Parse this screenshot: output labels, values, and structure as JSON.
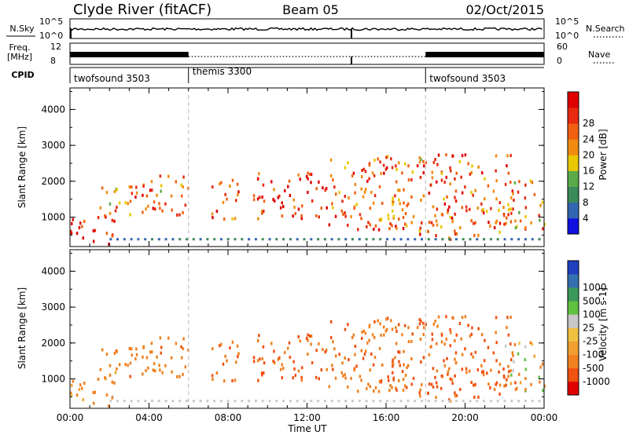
{
  "header": {
    "station": "Clyde River (fitACF)",
    "beam": "Beam 05",
    "date": "02/Oct/2015"
  },
  "side_labels": {
    "nsky": "N.Sky",
    "freq_line1": "Freq.",
    "freq_line2": "[MHz]",
    "cpid": "CPID",
    "nsearch": "N.Search",
    "nave": "Nave",
    "nsky_tick_hi": "10^5",
    "nsky_tick_lo": "10^0",
    "freq_tick_hi": "12",
    "freq_tick_lo": "8",
    "nave_tick_hi": "60",
    "nave_tick_lo": "0"
  },
  "cpid_segments": [
    {
      "label": "twofsound 3503",
      "start_h": 0
    },
    {
      "label": "themis 3300",
      "start_h": 6
    },
    {
      "label": "twofsound 3503",
      "start_h": 18
    }
  ],
  "axes": {
    "x_label": "Time UT",
    "x_ticks": [
      "00:00",
      "04:00",
      "08:00",
      "12:00",
      "16:00",
      "20:00",
      "00:00"
    ],
    "y_label": "Slant Range [km]",
    "y_ticks": [
      "1000",
      "2000",
      "3000",
      "4000"
    ]
  },
  "power_colorbar": {
    "label": "Power [dB]",
    "ticks": [
      "4",
      "8",
      "12",
      "16",
      "20",
      "24",
      "28"
    ],
    "colors": [
      "#1010e0",
      "#3366b0",
      "#3a8a5a",
      "#5aaa4a",
      "#e8c800",
      "#f08a10",
      "#f06010",
      "#e82a10",
      "#e00000"
    ]
  },
  "velocity_colorbar": {
    "label": "Velocity [m s-1]",
    "ticks": [
      "1000",
      "500",
      "100",
      "25",
      "-25",
      "-100",
      "-500",
      "-1000"
    ],
    "colors": [
      "#2040c0",
      "#3470b0",
      "#3a9a5a",
      "#60c040",
      "#c8c8c8",
      "#f0c040",
      "#f0a030",
      "#f08020",
      "#f05010",
      "#e00000"
    ]
  },
  "chart_data": {
    "type": "heatmap",
    "title": "Clyde River (fitACF) Beam 05 02/Oct/2015",
    "xlabel": "Time UT",
    "ylabel": "Slant Range [km]",
    "xlim": [
      0,
      24
    ],
    "ylim": [
      180,
      4600
    ],
    "power_range_db": [
      0,
      32
    ],
    "velocity_range": [
      -1000,
      1000
    ],
    "frequency_mhz": {
      "twofsound": 11,
      "themis": 10
    },
    "cpid_changes_h": [
      6,
      18
    ],
    "echo_regions": [
      {
        "t": [
          0.0,
          2.2
        ],
        "r": [
          200,
          1000
        ],
        "power_db": 30,
        "velocity": -200
      },
      {
        "t": [
          1.3,
          3.1
        ],
        "r": [
          900,
          1800
        ],
        "power_db": 20,
        "velocity": -300
      },
      {
        "t": [
          3.0,
          6.2
        ],
        "r": [
          1000,
          2100
        ],
        "power_db": 22,
        "velocity": -350
      },
      {
        "t": [
          7.0,
          8.5
        ],
        "r": [
          900,
          2000
        ],
        "power_db": 24,
        "velocity": -400
      },
      {
        "t": [
          9.2,
          13.0
        ],
        "r": [
          900,
          2200
        ],
        "power_db": 26,
        "velocity": -600
      },
      {
        "t": [
          13.0,
          17.8
        ],
        "r": [
          600,
          2700
        ],
        "power_db": 22,
        "velocity": -450
      },
      {
        "t": [
          15.0,
          17.0
        ],
        "r": [
          500,
          800
        ],
        "power_db": 28,
        "velocity": -300
      },
      {
        "t": [
          17.5,
          22.5
        ],
        "r": [
          300,
          2700
        ],
        "power_db": 24,
        "velocity": -550
      },
      {
        "t": [
          22.0,
          24.0
        ],
        "r": [
          600,
          2000
        ],
        "power_db": 20,
        "velocity": -150
      }
    ]
  }
}
